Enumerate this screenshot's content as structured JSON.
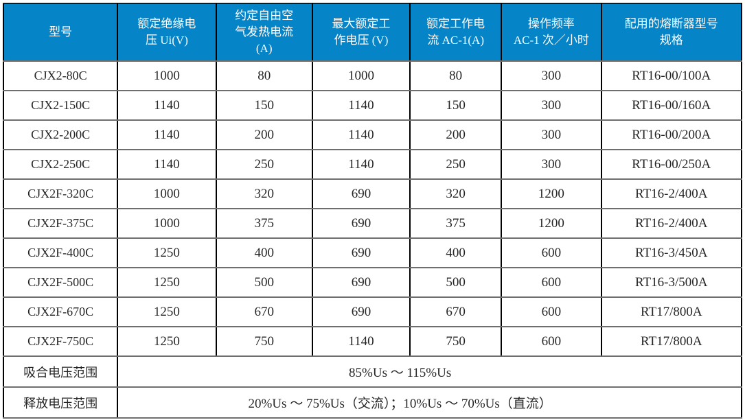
{
  "table": {
    "columns": [
      {
        "label": "型号"
      },
      {
        "label": "额定绝缘电\n压 Ui(V)"
      },
      {
        "label": "约定自由空\n气发热电流\n(A)"
      },
      {
        "label": "最大额定工\n作电压 (V)"
      },
      {
        "label": "额定工作电\n流 AC-1(A)"
      },
      {
        "label": "操作频率\nAC-1 次／小时"
      },
      {
        "label": "配用的熔断器型号\n规格"
      }
    ],
    "rows": [
      {
        "model": "CJX2-80C",
        "values": [
          "1000",
          "80",
          "1000",
          "80",
          "300",
          "RT16-00/100A"
        ]
      },
      {
        "model": "CJX2-150C",
        "values": [
          "1140",
          "150",
          "1140",
          "150",
          "300",
          "RT16-00/160A"
        ]
      },
      {
        "model": "CJX2-200C",
        "values": [
          "1140",
          "200",
          "1140",
          "200",
          "300",
          "RT16-00/200A"
        ]
      },
      {
        "model": "CJX2-250C",
        "values": [
          "1140",
          "250",
          "1140",
          "250",
          "300",
          "RT16-00/250A"
        ]
      },
      {
        "model": "CJX2F-320C",
        "values": [
          "1000",
          "320",
          "690",
          "320",
          "1200",
          "RT16-2/400A"
        ]
      },
      {
        "model": "CJX2F-375C",
        "values": [
          "1000",
          "375",
          "690",
          "375",
          "1200",
          "RT16-2/400A"
        ]
      },
      {
        "model": "CJX2F-400C",
        "values": [
          "1250",
          "400",
          "690",
          "400",
          "600",
          "RT16-3/450A"
        ]
      },
      {
        "model": "CJX2F-500C",
        "values": [
          "1250",
          "500",
          "690",
          "500",
          "600",
          "RT16-3/500A"
        ]
      },
      {
        "model": "CJX2F-670C",
        "values": [
          "1250",
          "670",
          "690",
          "670",
          "600",
          "RT17/800A"
        ]
      },
      {
        "model": "CJX2F-750C",
        "values": [
          "1250",
          "750",
          "1140",
          "750",
          "600",
          "RT17/800A"
        ]
      }
    ],
    "footer_rows": [
      {
        "label": "吸合电压范围",
        "value": "85%Us ～ 115%Us"
      },
      {
        "label": "释放电压范围",
        "value": "20%Us ～ 75%Us（交流）；10%Us ～ 70%Us（直流）"
      }
    ]
  },
  "colors": {
    "header_bg": "#0584C8",
    "header_text": "#FFFFFF",
    "vertical_grid": "#000000",
    "horizontal_grid": "#6E6E6E",
    "body_text": "#262626"
  }
}
